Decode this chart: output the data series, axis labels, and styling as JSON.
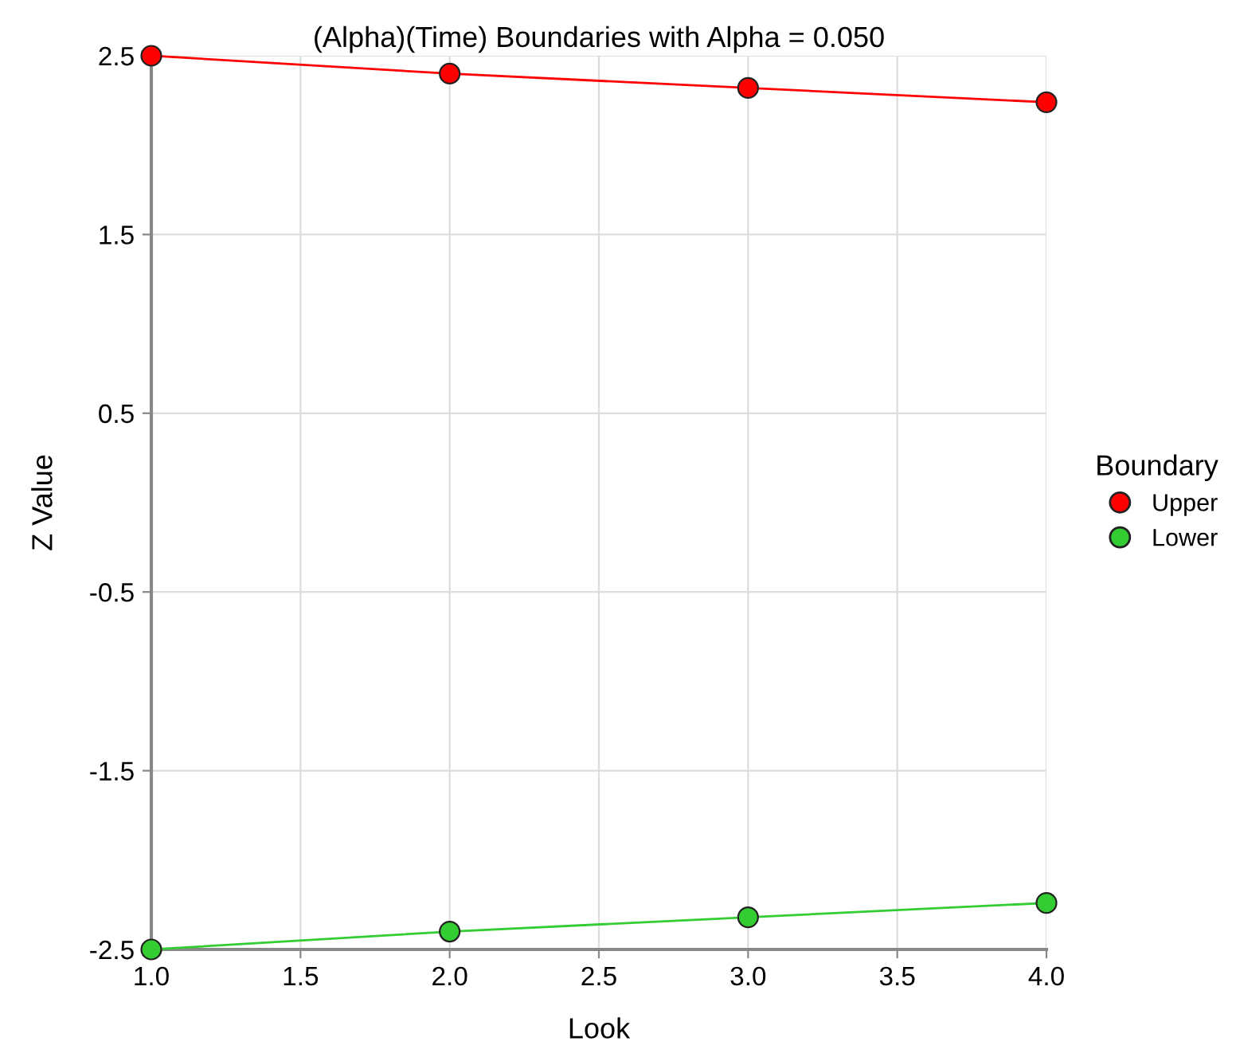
{
  "chart_data": {
    "type": "line",
    "title": "(Alpha)(Time) Boundaries with Alpha = 0.050",
    "xlabel": "Look",
    "ylabel": "Z Value",
    "legend_title": "Boundary",
    "x": [
      1,
      2,
      3,
      4
    ],
    "series": [
      {
        "name": "Upper",
        "color": "#ff0000",
        "values": [
          2.5,
          2.4,
          2.32,
          2.24
        ]
      },
      {
        "name": "Lower",
        "color": "#33cc33",
        "values": [
          -2.5,
          -2.4,
          -2.32,
          -2.24
        ]
      }
    ],
    "xlim": [
      1.0,
      4.0
    ],
    "xticks": [
      {
        "value": 1,
        "label": "1.0"
      },
      {
        "value": 1.5,
        "label": "1.5"
      },
      {
        "value": 2,
        "label": "2.0"
      },
      {
        "value": 2.5,
        "label": "2.5"
      },
      {
        "value": 3,
        "label": "3.0"
      },
      {
        "value": 3.5,
        "label": "3.5"
      },
      {
        "value": 4,
        "label": "4.0"
      }
    ],
    "ylim": [
      -2.5,
      2.5
    ],
    "yticks": [
      -2.5,
      -1.5,
      -0.5,
      0.5,
      1.5,
      2.5
    ],
    "grid": true,
    "legend": "right",
    "marker": "circle",
    "line_style": "solid"
  }
}
